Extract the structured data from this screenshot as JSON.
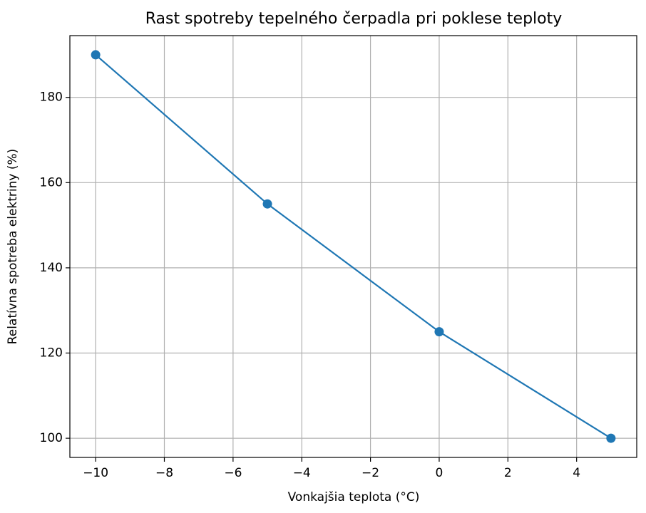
{
  "chart_data": {
    "type": "line",
    "title": "Rast spotreby tepelného čerpadla pri poklese teploty",
    "x_label": "Vonkajšia teplota (°C)",
    "y_label": "Relatívna spotreba elektriny (%)",
    "x": [
      -10,
      -5,
      0,
      5
    ],
    "values": [
      190,
      155,
      125,
      100
    ],
    "color": "#1f77b4",
    "xlim": [
      -10.75,
      5.75
    ],
    "xticks": [
      {
        "value": -10,
        "label": "−10"
      },
      {
        "value": -8,
        "label": "−8"
      },
      {
        "value": -6,
        "label": "−6"
      },
      {
        "value": -4,
        "label": "−4"
      },
      {
        "value": -2,
        "label": "−2"
      },
      0,
      2,
      4
    ],
    "ylim": [
      95.5,
      194.5
    ],
    "yticks": [
      100,
      120,
      140,
      160,
      180
    ],
    "grid": true
  }
}
